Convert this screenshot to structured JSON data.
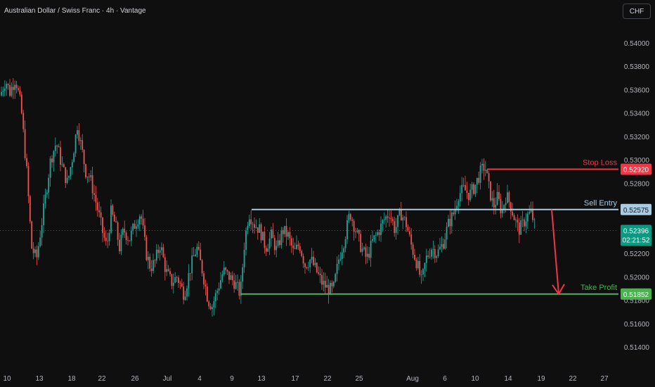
{
  "header": {
    "title": "Australian Dollar / Swiss Franc · 4h · Vantage",
    "currency": "CHF"
  },
  "colors": {
    "background": "#0f0f0f",
    "up_candle": "#26a69a",
    "down_candle": "#ef5350",
    "stop_loss": "#f23645",
    "sell_entry": "#a9cce3",
    "take_profit": "#4caf50",
    "arrow": "#f23645",
    "current_price_badge": "#089981"
  },
  "chart_data": {
    "type": "candlestick",
    "symbol": "AUDCHF",
    "timeframe": "4h",
    "ylim": [
      0.513,
      0.542
    ],
    "y_ticks": [
      "0.54000",
      "0.53800",
      "0.53600",
      "0.53400",
      "0.53200",
      "0.53000",
      "0.52800",
      "0.52600",
      "0.52400",
      "0.52200",
      "0.52000",
      "0.51800",
      "0.51600",
      "0.51400"
    ],
    "x_ticks": [
      "10",
      "13",
      "18",
      "22",
      "26",
      "Jul",
      "4",
      "9",
      "13",
      "17",
      "22",
      "25",
      "Aug",
      "6",
      "10",
      "14",
      "19",
      "22",
      "27"
    ],
    "price_path": [
      [
        0,
        0.5355
      ],
      [
        8,
        0.5368
      ],
      [
        14,
        0.5358
      ],
      [
        22,
        0.537
      ],
      [
        30,
        0.5345
      ],
      [
        38,
        0.529
      ],
      [
        45,
        0.5225
      ],
      [
        52,
        0.5215
      ],
      [
        58,
        0.524
      ],
      [
        65,
        0.527
      ],
      [
        72,
        0.53
      ],
      [
        80,
        0.5315
      ],
      [
        88,
        0.5295
      ],
      [
        96,
        0.528
      ],
      [
        104,
        0.5305
      ],
      [
        110,
        0.533
      ],
      [
        116,
        0.531
      ],
      [
        122,
        0.529
      ],
      [
        128,
        0.5285
      ],
      [
        134,
        0.527
      ],
      [
        140,
        0.5255
      ],
      [
        146,
        0.5238
      ],
      [
        152,
        0.5225
      ],
      [
        158,
        0.5255
      ],
      [
        164,
        0.5245
      ],
      [
        170,
        0.5225
      ],
      [
        176,
        0.524
      ],
      [
        184,
        0.5232
      ],
      [
        192,
        0.5245
      ],
      [
        200,
        0.5255
      ],
      [
        208,
        0.522
      ],
      [
        214,
        0.5208
      ],
      [
        220,
        0.5212
      ],
      [
        228,
        0.5228
      ],
      [
        236,
        0.5205
      ],
      [
        244,
        0.5195
      ],
      [
        252,
        0.52
      ],
      [
        262,
        0.5185
      ],
      [
        272,
        0.521
      ],
      [
        280,
        0.5225
      ],
      [
        288,
        0.5205
      ],
      [
        296,
        0.518
      ],
      [
        302,
        0.5175
      ],
      [
        310,
        0.519
      ],
      [
        318,
        0.5205
      ],
      [
        326,
        0.52
      ],
      [
        334,
        0.5195
      ],
      [
        342,
        0.5185
      ],
      [
        348,
        0.523
      ],
      [
        354,
        0.5255
      ],
      [
        362,
        0.5245
      ],
      [
        370,
        0.524
      ],
      [
        378,
        0.5225
      ],
      [
        386,
        0.5235
      ],
      [
        394,
        0.5222
      ],
      [
        402,
        0.524
      ],
      [
        410,
        0.5235
      ],
      [
        418,
        0.522
      ],
      [
        426,
        0.5228
      ],
      [
        434,
        0.521
      ],
      [
        442,
        0.5215
      ],
      [
        450,
        0.5205
      ],
      [
        458,
        0.5195
      ],
      [
        466,
        0.519
      ],
      [
        474,
        0.5188
      ],
      [
        482,
        0.5215
      ],
      [
        490,
        0.5232
      ],
      [
        498,
        0.5255
      ],
      [
        506,
        0.524
      ],
      [
        514,
        0.5225
      ],
      [
        522,
        0.5215
      ],
      [
        530,
        0.523
      ],
      [
        538,
        0.5238
      ],
      [
        546,
        0.5248
      ],
      [
        554,
        0.5255
      ],
      [
        562,
        0.524
      ],
      [
        570,
        0.5255
      ],
      [
        578,
        0.5245
      ],
      [
        586,
        0.5225
      ],
      [
        594,
        0.521
      ],
      [
        600,
        0.5195
      ],
      [
        606,
        0.5215
      ],
      [
        614,
        0.5225
      ],
      [
        622,
        0.522
      ],
      [
        630,
        0.5228
      ],
      [
        638,
        0.5245
      ],
      [
        646,
        0.5255
      ],
      [
        652,
        0.527
      ],
      [
        660,
        0.5275
      ],
      [
        668,
        0.527
      ],
      [
        676,
        0.5278
      ],
      [
        684,
        0.529
      ],
      [
        690,
        0.5295
      ],
      [
        696,
        0.5275
      ],
      [
        702,
        0.526
      ],
      [
        708,
        0.5268
      ],
      [
        714,
        0.5255
      ],
      [
        720,
        0.527
      ],
      [
        726,
        0.5262
      ],
      [
        732,
        0.525
      ],
      [
        738,
        0.524
      ],
      [
        744,
        0.5245
      ],
      [
        750,
        0.5252
      ],
      [
        756,
        0.5255
      ],
      [
        762,
        0.524
      ]
    ],
    "levels": [
      {
        "name": "Stop Loss",
        "price": "0.52920",
        "value": 0.5292,
        "x_start": 693
      },
      {
        "name": "Sell Entry",
        "price": "0.52575",
        "value": 0.52575,
        "x_start": 358
      },
      {
        "name": "Take Profit",
        "price": "0.51852",
        "value": 0.51852,
        "x_start": 343
      }
    ],
    "current_price": {
      "value": 0.52396,
      "price": "0.52396",
      "countdown": "02:21:52"
    },
    "projection_arrow": {
      "from": [
        785,
        0.52575
      ],
      "to": [
        795,
        0.51852
      ]
    },
    "grid": false,
    "legend": "none"
  }
}
